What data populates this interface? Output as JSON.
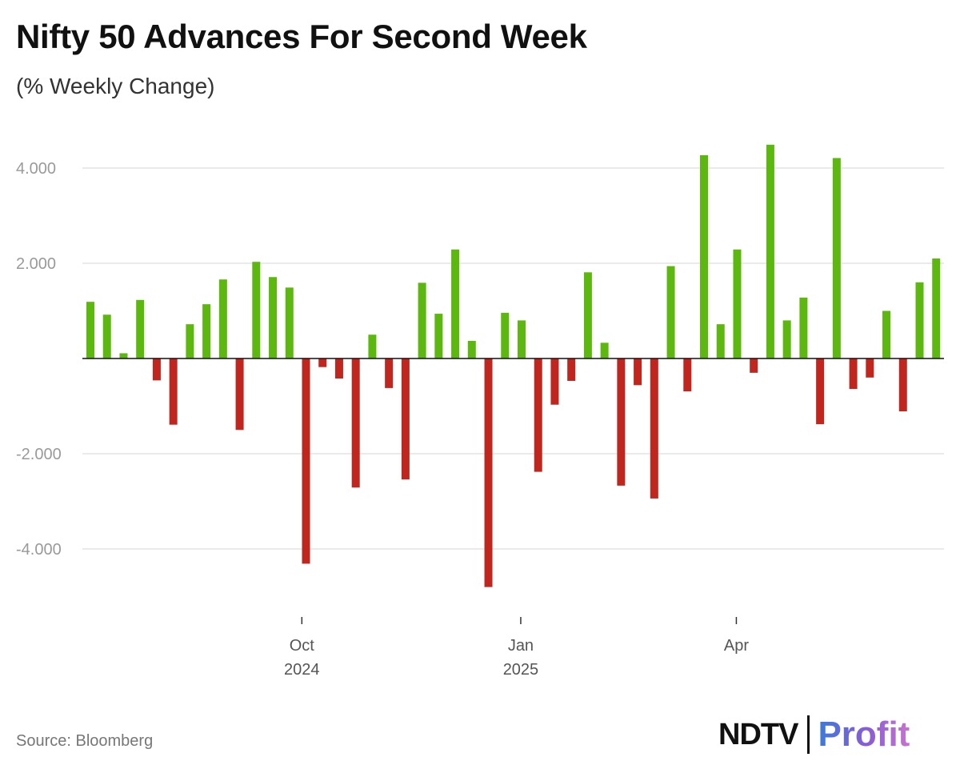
{
  "header": {
    "title": "Nifty 50 Advances For Second Week",
    "subtitle": "(% Weekly Change)"
  },
  "footer": {
    "source": "Source: Bloomberg",
    "logo_main": "NDTV",
    "logo_sub": "Profit"
  },
  "colors": {
    "positive": "#5cb80e",
    "negative": "#c0261e",
    "gridline": "#dddddd",
    "zero_line": "#111111"
  },
  "chart_data": {
    "type": "bar",
    "title": "Nifty 50 Advances For Second Week",
    "subtitle": "(% Weekly Change)",
    "ylim": [
      -4.9,
      4.9
    ],
    "yticks": [
      -4,
      -2,
      2,
      4
    ],
    "ytick_labels": [
      "-4.000",
      "-2.000",
      "2.000",
      "4.000"
    ],
    "grid": true,
    "values": [
      1.19,
      0.92,
      0.11,
      1.23,
      -0.46,
      -1.39,
      0.72,
      1.14,
      1.66,
      -1.5,
      2.03,
      1.71,
      1.49,
      -4.31,
      -0.18,
      -0.42,
      -2.71,
      0.5,
      -0.62,
      -2.54,
      1.59,
      0.94,
      2.29,
      0.37,
      -4.8,
      0.96,
      0.8,
      -2.38,
      -0.97,
      -0.47,
      1.81,
      0.33,
      -2.67,
      -0.56,
      -2.94,
      1.94,
      -0.69,
      4.27,
      0.72,
      2.29,
      -0.3,
      4.49,
      0.8,
      1.28,
      -1.38,
      4.21,
      -0.64,
      -0.4,
      1.0,
      -1.11,
      1.6,
      2.1
    ],
    "x_ticks": [
      {
        "bar_index": 12.75,
        "label": "Oct",
        "sublabel": "2024"
      },
      {
        "bar_index": 25.95,
        "label": "Jan",
        "sublabel": "2025"
      },
      {
        "bar_index": 38.95,
        "label": "Apr",
        "sublabel": ""
      }
    ]
  }
}
